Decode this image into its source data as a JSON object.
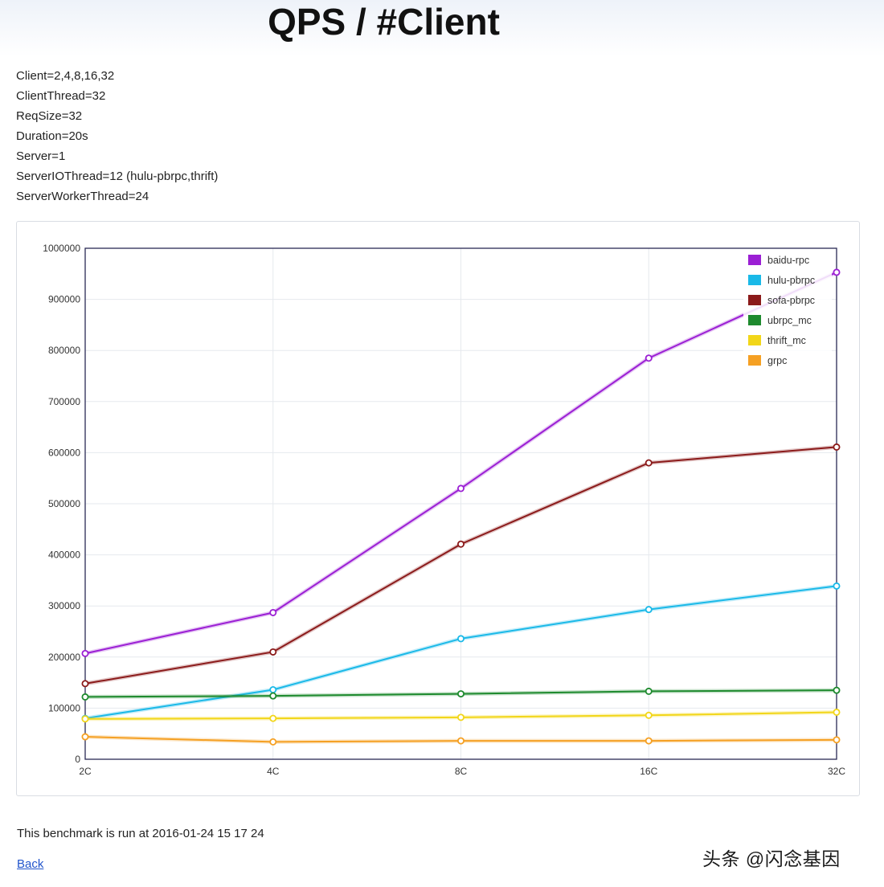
{
  "page": {
    "title": "QPS / #Client",
    "params": [
      "Client=2,4,8,16,32",
      "ClientThread=32",
      "ReqSize=32",
      "Duration=20s",
      "Server=1",
      "ServerIOThread=12 (hulu-pbrpc,thrift)",
      "ServerWorkerThread=24"
    ],
    "footer": "This benchmark is run at 2016-01-24 15 17 24",
    "back_label": "Back",
    "watermark": "头条 @闪念基因"
  },
  "chart_data": {
    "type": "line",
    "title": "QPS / #Client",
    "xlabel": "",
    "ylabel": "",
    "categories": [
      "2C",
      "4C",
      "8C",
      "16C",
      "32C"
    ],
    "ylim": [
      0,
      1000000
    ],
    "yticks": [
      0,
      100000,
      200000,
      300000,
      400000,
      500000,
      600000,
      700000,
      800000,
      900000,
      1000000
    ],
    "grid": true,
    "legend_position": "top-right",
    "series": [
      {
        "name": "baidu-rpc",
        "color": "#9b1fd4",
        "values": [
          207000,
          287000,
          530000,
          785000,
          953000
        ]
      },
      {
        "name": "hulu-pbrpc",
        "color": "#1ab9e8",
        "values": [
          80000,
          136000,
          236000,
          293000,
          339000
        ]
      },
      {
        "name": "sofa-pbrpc",
        "color": "#8b1a1a",
        "values": [
          148000,
          210000,
          421000,
          580000,
          611000
        ]
      },
      {
        "name": "ubrpc_mc",
        "color": "#1e8a2e",
        "values": [
          122000,
          124000,
          128000,
          133000,
          135000
        ]
      },
      {
        "name": "thrift_mc",
        "color": "#f2d619",
        "values": [
          79000,
          80000,
          82000,
          86000,
          92000
        ]
      },
      {
        "name": "grpc",
        "color": "#f5a023",
        "values": [
          44000,
          34000,
          36000,
          36000,
          38000
        ]
      }
    ]
  }
}
